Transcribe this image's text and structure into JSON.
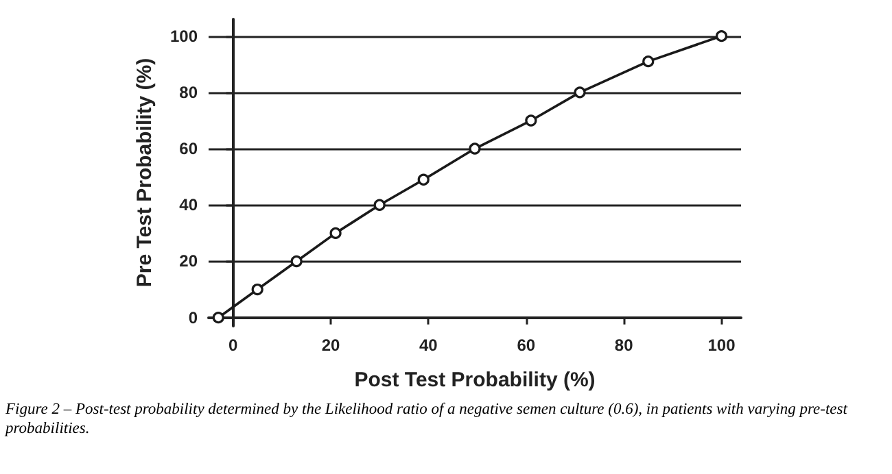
{
  "chart_data": {
    "type": "line",
    "xlabel": "Post Test Probability (%)",
    "ylabel": "Pre Test Probability (%)",
    "x": [
      -3,
      5,
      13,
      21,
      30,
      39,
      49.5,
      61,
      71,
      85,
      100
    ],
    "series": [
      {
        "color": "#1a1a1a",
        "values": [
          0,
          10,
          20,
          30,
          40,
          49,
          60,
          70,
          80,
          91,
          100
        ]
      }
    ],
    "xlim": [
      -5,
      104
    ],
    "xticks": [
      0,
      20,
      40,
      60,
      80,
      100
    ],
    "ylim": [
      -3,
      106
    ],
    "yticks": [
      0,
      20,
      40,
      60,
      80,
      100
    ],
    "grid": "y",
    "marker": "circle",
    "line_style": "solid",
    "annotations": [
      "Figure 2 – Post-test probability determined by the Likelihood ratio of a negative semen culture (0.6), in patients with varying pre-test probabilities."
    ]
  }
}
